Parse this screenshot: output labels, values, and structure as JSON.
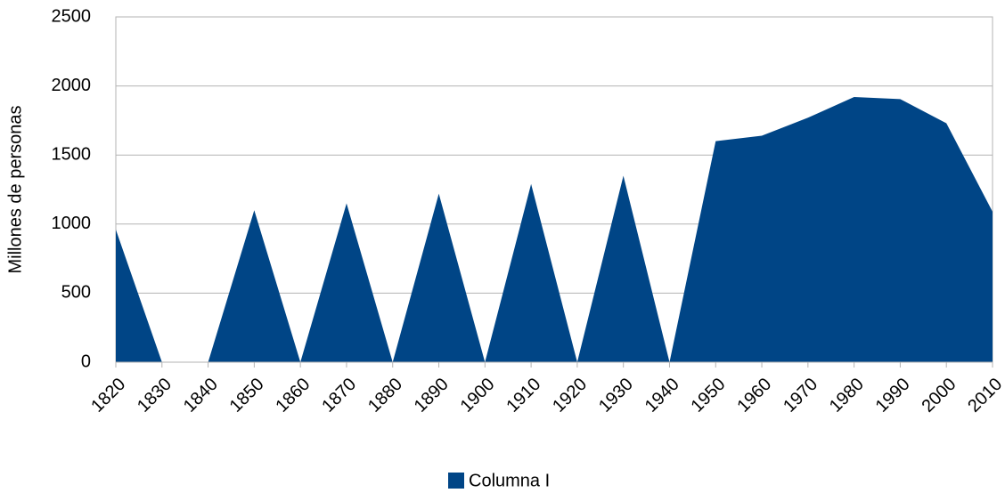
{
  "chart_data": {
    "type": "area",
    "y_label": "Millones de personas",
    "categories": [
      "1820",
      "1830",
      "1840",
      "1850",
      "1860",
      "1870",
      "1880",
      "1890",
      "1900",
      "1910",
      "1920",
      "1930",
      "1940",
      "1950",
      "1960",
      "1970",
      "1980",
      "1990",
      "2000",
      "2010"
    ],
    "series": [
      {
        "name": "Columna I",
        "color": "#004586",
        "values": [
          960,
          0,
          0,
          1100,
          0,
          1150,
          0,
          1220,
          0,
          1290,
          0,
          1350,
          0,
          1600,
          1640,
          1770,
          1920,
          1905,
          1730,
          1090
        ]
      }
    ],
    "ylim": [
      0,
      2500
    ],
    "yticks": [
      0,
      500,
      1000,
      1500,
      2000,
      2500
    ],
    "grid": true,
    "legend": "bottom"
  }
}
